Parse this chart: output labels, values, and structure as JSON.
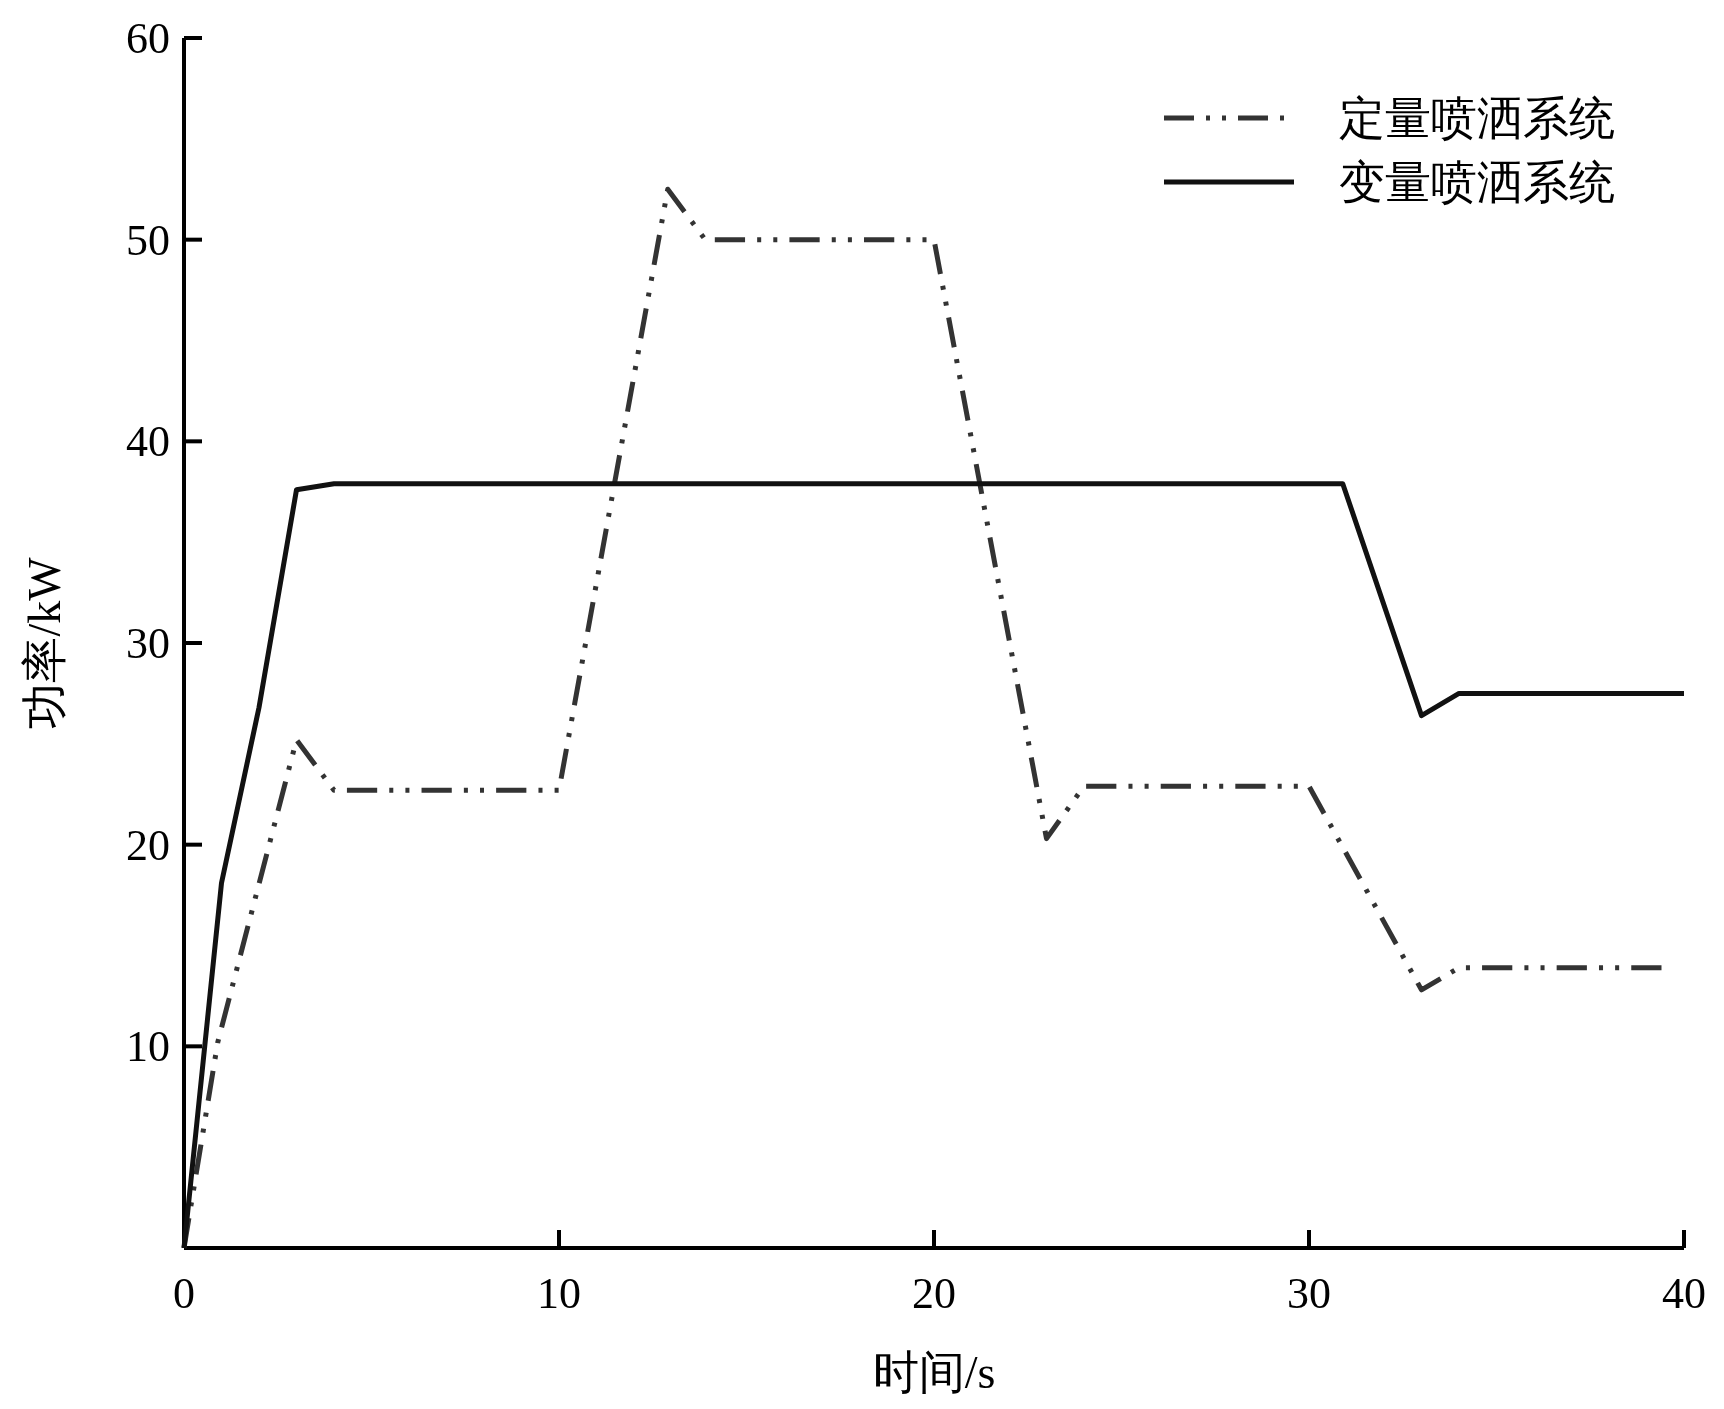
{
  "chart_data": {
    "type": "line",
    "xlabel": "时间/s",
    "ylabel": "功率/kW",
    "xlim": [
      0,
      40
    ],
    "ylim": [
      0,
      60
    ],
    "xticks": [
      0,
      10,
      20,
      30,
      40
    ],
    "yticks": [
      {
        "value": 0,
        "label": null
      },
      10,
      20,
      30,
      40,
      50,
      60
    ],
    "legend": "top right",
    "grid": false,
    "marker": "none",
    "series": [
      {
        "name": "定量喷洒系统",
        "color": "#333333",
        "line_style": "dashed",
        "x": [
          0,
          0.9,
          3,
          4,
          10,
          12.9,
          13.9,
          20,
          23,
          24,
          30,
          33,
          34,
          39.4
        ],
        "values": [
          0,
          10.2,
          25.2,
          22.7,
          22.7,
          52.5,
          50,
          50,
          20.3,
          22.9,
          22.9,
          12.8,
          13.9,
          13.9
        ]
      },
      {
        "name": "变量喷洒系统",
        "color": "#111111",
        "line_style": "solid",
        "x": [
          0,
          1,
          2,
          3,
          4,
          30.9,
          33,
          34,
          40
        ],
        "values": [
          0,
          18.1,
          26.8,
          37.6,
          37.9,
          37.9,
          26.4,
          27.5,
          27.5
        ]
      }
    ]
  }
}
